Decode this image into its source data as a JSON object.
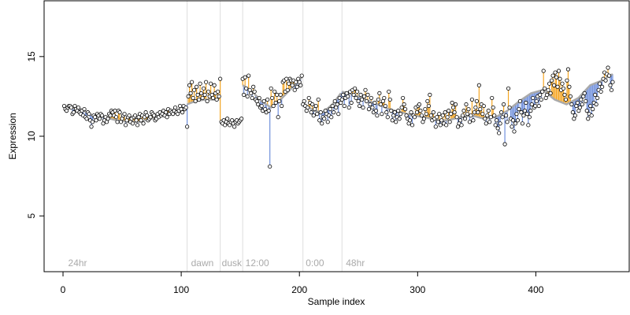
{
  "chart_data": {
    "type": "scatter",
    "title": "",
    "xlabel": "Sample index",
    "ylabel": "Expression",
    "xlim": [
      -16,
      479
    ],
    "ylim": [
      1.5,
      18.5
    ],
    "x_ticks": [
      0,
      100,
      200,
      300,
      400
    ],
    "y_ticks": [
      5,
      10,
      15
    ],
    "grid": false,
    "legend": "none",
    "colors": {
      "points_fill": "#ffffff",
      "points_stroke": "#000000",
      "fitted_line": "#aaaaaa",
      "residual_positive": "#f5a623",
      "residual_negative": "#6f8fdc",
      "boundary_line": "#dddddd",
      "annotation_text": "#aaaaaa"
    },
    "boundaries": [
      105,
      133,
      152,
      203,
      236
    ],
    "annotations": [
      {
        "x": 3,
        "label": "24hr"
      },
      {
        "x": 107,
        "label": "dawn"
      },
      {
        "x": 133,
        "label": "dusk"
      },
      {
        "x": 153,
        "label": "12:00"
      },
      {
        "x": 204,
        "label": "0:00"
      },
      {
        "x": 238,
        "label": "48hr"
      }
    ],
    "segments": [
      {
        "x_start": 1,
        "x_end": 104,
        "fitted": [
          [
            1,
            11.8
          ],
          [
            15,
            11.7
          ],
          [
            25,
            11.3
          ],
          [
            35,
            11.2
          ],
          [
            45,
            11.0
          ],
          [
            55,
            10.9
          ],
          [
            65,
            10.9
          ],
          [
            75,
            11.1
          ],
          [
            85,
            11.3
          ],
          [
            95,
            11.6
          ],
          [
            104,
            11.7
          ]
        ]
      },
      {
        "x_start": 105,
        "x_end": 132,
        "fitted": [
          [
            105,
            12.0
          ],
          [
            112,
            12.2
          ],
          [
            120,
            12.3
          ],
          [
            132,
            12.3
          ]
        ]
      },
      {
        "x_start": 133,
        "x_end": 151,
        "fitted": [
          [
            133,
            11.0
          ],
          [
            140,
            10.9
          ],
          [
            151,
            11.0
          ]
        ]
      },
      {
        "x_start": 152,
        "x_end": 202,
        "fitted": [
          [
            152,
            13.2
          ],
          [
            160,
            12.8
          ],
          [
            168,
            12.2
          ],
          [
            176,
            11.8
          ],
          [
            184,
            12.3
          ],
          [
            192,
            12.9
          ],
          [
            202,
            13.7
          ]
        ]
      },
      {
        "x_start": 203,
        "x_end": 235,
        "fitted": [
          [
            203,
            12.1
          ],
          [
            212,
            11.6
          ],
          [
            220,
            11.5
          ],
          [
            228,
            12.0
          ],
          [
            235,
            12.7
          ]
        ]
      },
      {
        "x_start": 236,
        "x_end": 465,
        "fitted": [
          [
            236,
            12.8
          ],
          [
            246,
            12.6
          ],
          [
            256,
            12.3
          ],
          [
            266,
            12.0
          ],
          [
            276,
            11.7
          ],
          [
            286,
            11.5
          ],
          [
            296,
            11.3
          ],
          [
            306,
            11.2
          ],
          [
            316,
            11.0
          ],
          [
            326,
            11.0
          ],
          [
            336,
            11.2
          ],
          [
            346,
            11.3
          ],
          [
            356,
            11.1
          ],
          [
            366,
            11.2
          ],
          [
            376,
            11.6
          ],
          [
            386,
            12.2
          ],
          [
            396,
            12.7
          ],
          [
            406,
            12.9
          ],
          [
            416,
            12.3
          ],
          [
            426,
            12.0
          ],
          [
            436,
            12.4
          ],
          [
            446,
            13.2
          ],
          [
            456,
            13.5
          ],
          [
            465,
            13.9
          ]
        ]
      }
    ],
    "point_groups": [
      {
        "x_start": 1,
        "x_end": 104,
        "values": [
          11.9,
          11.7,
          11.6,
          11.8,
          11.9,
          11.9,
          11.8,
          11.4,
          11.5,
          11.9,
          11.7,
          11.6,
          11.8,
          11.5,
          11.4,
          11.6,
          11.3,
          11.7,
          11.2,
          11.1,
          11.5,
          11.4,
          11.0,
          10.6,
          10.9,
          11.3,
          11.2,
          11.0,
          11.4,
          11.3,
          11.1,
          11.4,
          11.3,
          10.8,
          11.0,
          11.2,
          10.9,
          11.1,
          11.4,
          11.3,
          11.6,
          11.5,
          11.3,
          11.6,
          11.2,
          10.9,
          11.6,
          11.5,
          10.9,
          11.1,
          11.3,
          11.4,
          10.7,
          11.0,
          11.2,
          11.3,
          10.9,
          11.1,
          10.8,
          11.2,
          11.3,
          11.0,
          10.7,
          11.2,
          11.4,
          11.0,
          11.3,
          10.8,
          11.2,
          11.5,
          11.3,
          11.0,
          11.1,
          11.2,
          11.5,
          11.4,
          11.3,
          11.0,
          11.1,
          11.4,
          11.2,
          11.5,
          11.3,
          11.4,
          11.6,
          11.3,
          11.5,
          11.2,
          11.7,
          11.4,
          11.6,
          11.5,
          11.4,
          11.6,
          11.8,
          11.5,
          11.4,
          11.6,
          11.9,
          11.7,
          11.5,
          11.9,
          11.7,
          11.8
        ]
      },
      {
        "x_start": 105,
        "x_end": 132,
        "values": [
          10.6,
          12.5,
          13.2,
          12.7,
          13.4,
          12.4,
          12.9,
          12.2,
          13.1,
          12.6,
          12.3,
          13.3,
          12.7,
          12.4,
          13.0,
          12.6,
          13.4,
          12.2,
          12.8,
          12.5,
          13.3,
          12.6,
          12.4,
          13.2,
          12.7,
          12.3,
          12.8,
          12.5
        ]
      },
      {
        "x_start": 133,
        "x_end": 151,
        "values": [
          13.6,
          10.9,
          10.8,
          11.0,
          10.7,
          10.9,
          11.1,
          10.8,
          10.7,
          10.9,
          11.0,
          10.8,
          10.6,
          10.9,
          11.0,
          10.8,
          10.9,
          11.0,
          11.1
        ]
      },
      {
        "x_start": 152,
        "x_end": 202,
        "values": [
          13.6,
          12.6,
          13.7,
          13.0,
          12.5,
          13.8,
          12.9,
          12.7,
          12.4,
          13.1,
          12.8,
          12.3,
          12.2,
          12.0,
          12.4,
          11.8,
          11.9,
          11.6,
          12.2,
          11.7,
          11.5,
          12.3,
          11.6,
          8.1,
          13.0,
          12.4,
          11.9,
          12.8,
          12.1,
          12.6,
          11.2,
          12.2,
          12.6,
          11.9,
          13.4,
          13.5,
          12.8,
          13.6,
          12.9,
          13.3,
          13.6,
          13.5,
          13.2,
          13.5,
          12.9,
          13.4,
          13.1,
          13.6,
          13.4,
          13.2,
          13.8
        ]
      },
      {
        "x_start": 203,
        "x_end": 235,
        "values": [
          12.0,
          12.2,
          11.9,
          11.6,
          11.8,
          12.4,
          12.1,
          11.5,
          12.0,
          11.3,
          11.7,
          11.9,
          11.4,
          12.3,
          11.0,
          11.5,
          10.8,
          11.2,
          11.1,
          11.6,
          11.4,
          10.9,
          11.3,
          11.7,
          11.2,
          11.9,
          11.5,
          12.2,
          11.8,
          12.0,
          11.4,
          12.4,
          12.1
        ]
      },
      {
        "x_start": 236,
        "x_end": 465,
        "values": [
          12.3,
          12.6,
          11.9,
          12.4,
          12.7,
          12.5,
          11.8,
          12.8,
          12.1,
          12.9,
          12.6,
          13.0,
          12.4,
          12.8,
          12.2,
          11.9,
          12.6,
          12.3,
          11.8,
          12.5,
          12.9,
          12.2,
          12.6,
          11.7,
          12.0,
          12.4,
          11.8,
          11.5,
          12.1,
          11.6,
          11.3,
          12.3,
          12.7,
          12.0,
          11.4,
          12.2,
          12.4,
          11.9,
          11.5,
          11.2,
          12.8,
          12.3,
          11.6,
          11.0,
          11.3,
          11.5,
          10.9,
          11.2,
          11.6,
          11.1,
          11.4,
          11.8,
          12.4,
          12.0,
          11.7,
          11.3,
          11.1,
          10.8,
          11.0,
          11.5,
          10.7,
          11.3,
          11.2,
          11.8,
          11.5,
          11.9,
          12.0,
          11.6,
          11.3,
          10.9,
          11.1,
          11.7,
          11.4,
          12.2,
          11.9,
          12.6,
          11.3,
          11.0,
          11.5,
          11.1,
          10.6,
          11.2,
          10.9,
          11.4,
          10.7,
          11.0,
          11.3,
          10.8,
          11.5,
          10.7,
          11.2,
          11.6,
          10.9,
          11.4,
          12.1,
          11.8,
          11.5,
          12.0,
          11.2,
          10.6,
          10.8,
          11.0,
          10.7,
          11.3,
          11.6,
          11.1,
          12.0,
          11.4,
          11.7,
          10.9,
          11.3,
          12.3,
          11.0,
          11.5,
          11.8,
          12.2,
          11.5,
          13.2,
          11.7,
          12.0,
          11.4,
          11.9,
          11.1,
          10.8,
          11.3,
          11.6,
          10.9,
          11.2,
          12.4,
          11.8,
          11.3,
          10.7,
          11.0,
          10.5,
          10.2,
          10.8,
          11.5,
          11.2,
          12.0,
          9.5,
          11.3,
          10.9,
          13.0,
          11.8,
          11.1,
          10.6,
          11.0,
          10.3,
          10.8,
          11.4,
          11.0,
          11.7,
          12.2,
          11.5,
          10.8,
          11.3,
          11.6,
          12.1,
          11.4,
          10.7,
          11.2,
          11.6,
          12.0,
          12.4,
          11.8,
          11.9,
          12.2,
          12.5,
          11.9,
          12.6,
          12.3,
          12.8,
          14.1,
          13.0,
          12.4,
          12.6,
          12.9,
          13.3,
          12.7,
          13.5,
          13.8,
          13.2,
          14.0,
          13.7,
          13.1,
          14.1,
          13.6,
          12.9,
          13.3,
          13.0,
          12.6,
          12.3,
          13.5,
          14.2,
          13.1,
          12.5,
          12.0,
          11.5,
          11.1,
          11.3,
          11.9,
          12.1,
          11.6,
          11.8,
          12.3,
          12.0,
          12.5,
          12.7,
          12.2,
          11.6,
          11.1,
          11.4,
          11.9,
          11.3,
          11.7,
          12.1,
          12.6,
          12.0,
          12.4,
          12.9,
          13.3,
          12.8,
          13.1,
          13.6,
          14.0,
          13.5,
          13.9,
          14.3,
          13.8,
          13.2,
          12.9,
          13.4
        ]
      }
    ]
  }
}
